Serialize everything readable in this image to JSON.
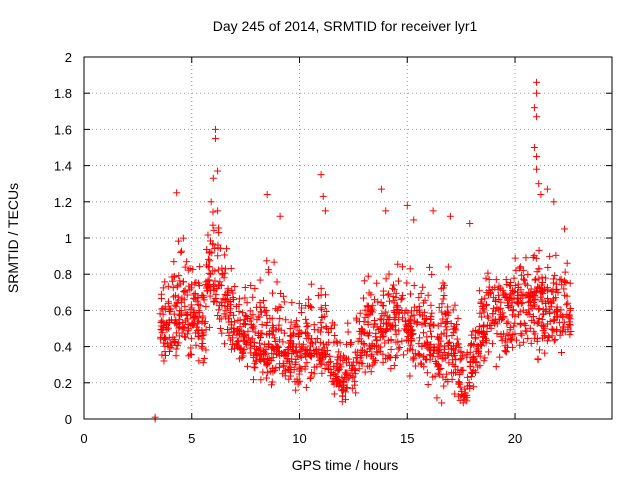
{
  "chart_data": {
    "type": "scatter",
    "title": "Day 245 of 2014, SRMTID for receiver lyr1",
    "xlabel": "GPS time / hours",
    "ylabel": "SRMTID / TECUs",
    "xlim": [
      0,
      24.5
    ],
    "ylim": [
      0,
      2
    ],
    "xticks": [
      0,
      5,
      10,
      15,
      20
    ],
    "xtick_labels": [
      "0",
      "5",
      "10",
      "15",
      "20"
    ],
    "yticks": [
      0,
      0.2,
      0.4,
      0.6,
      0.8,
      1,
      1.2,
      1.4,
      1.6,
      1.8,
      2
    ],
    "ytick_labels": [
      "0",
      "0.2",
      "0.4",
      "0.6",
      "0.8",
      "1",
      "1.2",
      "1.4",
      "1.6",
      "1.8",
      "2"
    ],
    "grid": true,
    "marker": "+",
    "color": "#ff0000",
    "x_range_of_points": [
      3.3,
      22.6
    ],
    "envelope": [
      {
        "x": 3.5,
        "low": 0.25,
        "mid": 0.5,
        "high": 0.85
      },
      {
        "x": 4.5,
        "low": 0.25,
        "mid": 0.6,
        "high": 1.05
      },
      {
        "x": 5.5,
        "low": 0.2,
        "mid": 0.55,
        "high": 1.0
      },
      {
        "x": 6.0,
        "low": 0.4,
        "mid": 0.9,
        "high": 1.35
      },
      {
        "x": 7.0,
        "low": 0.25,
        "mid": 0.5,
        "high": 0.95
      },
      {
        "x": 8.0,
        "low": 0.15,
        "mid": 0.4,
        "high": 0.9
      },
      {
        "x": 9.0,
        "low": 0.15,
        "mid": 0.4,
        "high": 1.0
      },
      {
        "x": 10.0,
        "low": 0.1,
        "mid": 0.35,
        "high": 0.7
      },
      {
        "x": 11.0,
        "low": 0.2,
        "mid": 0.4,
        "high": 1.0
      },
      {
        "x": 12.0,
        "low": 0.05,
        "mid": 0.18,
        "high": 0.5
      },
      {
        "x": 13.0,
        "low": 0.15,
        "mid": 0.4,
        "high": 0.9
      },
      {
        "x": 14.0,
        "low": 0.2,
        "mid": 0.55,
        "high": 0.95
      },
      {
        "x": 15.0,
        "low": 0.2,
        "mid": 0.55,
        "high": 0.9
      },
      {
        "x": 16.0,
        "low": 0.05,
        "mid": 0.45,
        "high": 0.9
      },
      {
        "x": 17.0,
        "low": 0.05,
        "mid": 0.4,
        "high": 0.9
      },
      {
        "x": 17.7,
        "low": 0.0,
        "mid": 0.1,
        "high": 0.4
      },
      {
        "x": 18.5,
        "low": 0.2,
        "mid": 0.55,
        "high": 0.95
      },
      {
        "x": 19.5,
        "low": 0.25,
        "mid": 0.6,
        "high": 0.9
      },
      {
        "x": 20.5,
        "low": 0.3,
        "mid": 0.65,
        "high": 1.0
      },
      {
        "x": 21.5,
        "low": 0.25,
        "mid": 0.65,
        "high": 1.05
      },
      {
        "x": 22.5,
        "low": 0.2,
        "mid": 0.6,
        "high": 1.0
      }
    ],
    "notable_points": [
      {
        "x": 4.3,
        "y": 1.25
      },
      {
        "x": 6.1,
        "y": 1.6
      },
      {
        "x": 6.1,
        "y": 1.55
      },
      {
        "x": 6.0,
        "y": 1.33
      },
      {
        "x": 6.2,
        "y": 1.37
      },
      {
        "x": 5.9,
        "y": 1.2
      },
      {
        "x": 6.2,
        "y": 1.15
      },
      {
        "x": 8.5,
        "y": 1.24
      },
      {
        "x": 9.1,
        "y": 1.12
      },
      {
        "x": 11.0,
        "y": 1.35
      },
      {
        "x": 11.1,
        "y": 1.23
      },
      {
        "x": 11.2,
        "y": 1.15
      },
      {
        "x": 13.8,
        "y": 1.27
      },
      {
        "x": 14.0,
        "y": 1.15
      },
      {
        "x": 15.0,
        "y": 1.18
      },
      {
        "x": 15.3,
        "y": 1.1
      },
      {
        "x": 16.2,
        "y": 1.15
      },
      {
        "x": 17.0,
        "y": 1.12
      },
      {
        "x": 17.9,
        "y": 1.08
      },
      {
        "x": 21.0,
        "y": 1.86
      },
      {
        "x": 21.0,
        "y": 1.8
      },
      {
        "x": 20.9,
        "y": 1.72
      },
      {
        "x": 21.0,
        "y": 1.67
      },
      {
        "x": 20.9,
        "y": 1.5
      },
      {
        "x": 21.0,
        "y": 1.45
      },
      {
        "x": 21.0,
        "y": 1.38
      },
      {
        "x": 21.1,
        "y": 1.3
      },
      {
        "x": 21.2,
        "y": 1.24
      },
      {
        "x": 21.5,
        "y": 1.27
      },
      {
        "x": 21.8,
        "y": 1.2
      },
      {
        "x": 22.3,
        "y": 1.05
      },
      {
        "x": 3.3,
        "y": 0.0
      },
      {
        "x": 3.3,
        "y": 0.01
      }
    ]
  }
}
